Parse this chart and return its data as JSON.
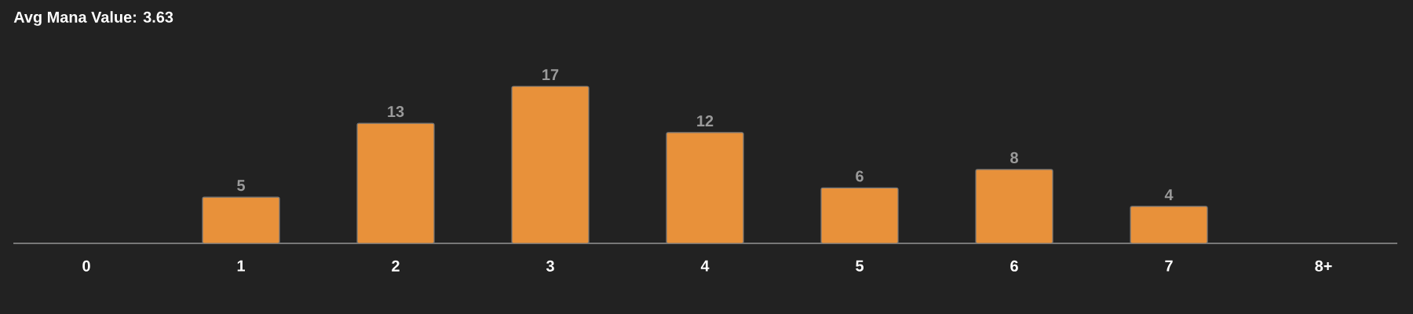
{
  "chart_data": {
    "type": "bar",
    "title": "Avg Mana Value: 3.63",
    "categories": [
      "0",
      "1",
      "2",
      "3",
      "4",
      "5",
      "6",
      "7",
      "8+"
    ],
    "values": [
      null,
      5,
      13,
      17,
      12,
      6,
      8,
      4,
      null
    ],
    "value_labels": [
      null,
      "5",
      "13",
      "17",
      "12",
      "6",
      "8",
      "4",
      null
    ],
    "color": "#e8913a"
  }
}
